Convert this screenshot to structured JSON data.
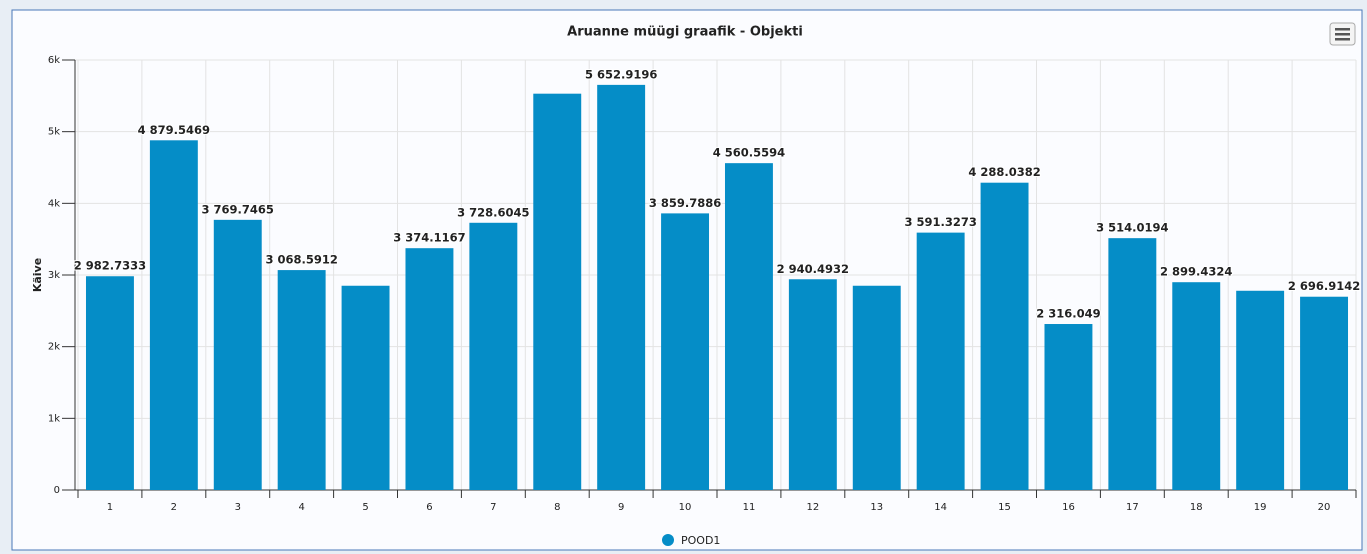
{
  "chart_data": {
    "type": "bar",
    "title": "Aruanne müügi graafik - Objekti",
    "y_label": "Käive",
    "categories": [
      "1",
      "2",
      "3",
      "4",
      "5",
      "6",
      "7",
      "8",
      "9",
      "10",
      "11",
      "12",
      "13",
      "14",
      "15",
      "16",
      "17",
      "18",
      "19",
      "20"
    ],
    "series": [
      {
        "name": "POOD1",
        "color": "#058dc7",
        "values": [
          2982.7333,
          4879.5469,
          3769.7465,
          3068.5912,
          2850,
          3374.1167,
          3728.6045,
          5530,
          5652.9196,
          3859.7886,
          4560.5594,
          2940.4932,
          2850,
          3591.3273,
          4288.0382,
          2316.049,
          3514.0194,
          2899.4324,
          2780,
          2696.9142
        ],
        "value_labels": [
          "2 982.7333",
          "4 879.5469",
          "3 769.7465",
          "3 068.5912",
          null,
          "3 374.1167",
          "3 728.6045",
          null,
          "5 652.9196",
          "3 859.7886",
          "4 560.5594",
          "2 940.4932",
          null,
          "3 591.3273",
          "4 288.0382",
          "2 316.049",
          "3 514.0194",
          "2 899.4324",
          null,
          "2 696.9142"
        ]
      }
    ],
    "ylim": [
      0,
      6000
    ],
    "yticks": [
      0,
      {
        "value": 1000,
        "label": "1k"
      },
      {
        "value": 2000,
        "label": "2k"
      },
      {
        "value": 3000,
        "label": "3k"
      },
      {
        "value": 4000,
        "label": "4k"
      },
      {
        "value": 5000,
        "label": "5k"
      },
      {
        "value": 6000,
        "label": "6k"
      }
    ],
    "grid": true,
    "legend": "bottom"
  }
}
